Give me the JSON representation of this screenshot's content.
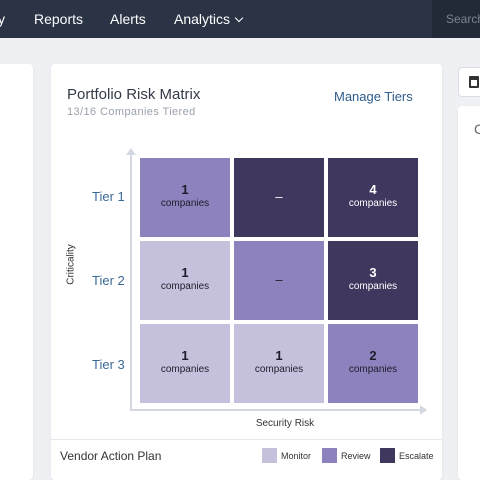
{
  "nav": {
    "partial_item": "y",
    "reports": "Reports",
    "alerts": "Alerts",
    "analytics": "Analytics",
    "search_placeholder": "Search"
  },
  "card": {
    "title": "Portfolio Risk Matrix",
    "subtitle": "13/16 Companies Tiered",
    "manage_link": "Manage Tiers"
  },
  "right_panel": {
    "letter": "C"
  },
  "chart_data": {
    "type": "heatmap",
    "ylabel": "Criticality",
    "xlabel": "Security Risk",
    "rows": [
      "Tier 1",
      "Tier 2",
      "Tier 3"
    ],
    "unit_label": "companies",
    "empty_label": "–",
    "cells": [
      [
        {
          "value": 1,
          "level": "review"
        },
        {
          "value": null,
          "level": "escalate"
        },
        {
          "value": 4,
          "level": "escalate"
        }
      ],
      [
        {
          "value": 1,
          "level": "monitor"
        },
        {
          "value": null,
          "level": "review"
        },
        {
          "value": 3,
          "level": "escalate"
        }
      ],
      [
        {
          "value": 1,
          "level": "monitor"
        },
        {
          "value": 1,
          "level": "monitor"
        },
        {
          "value": 2,
          "level": "review"
        }
      ]
    ],
    "levels": {
      "monitor": {
        "color": "#c5c0dc",
        "text_color": "#1e1d2b"
      },
      "review": {
        "color": "#8d82bd",
        "text_color": "#1e1d2b"
      },
      "escalate": {
        "color": "#40375f",
        "text_color": "#ffffff"
      }
    }
  },
  "footer": {
    "title": "Vendor Action Plan",
    "legend": [
      {
        "label": "Monitor",
        "color": "#c5c0dc"
      },
      {
        "label": "Review",
        "color": "#8d82bd"
      },
      {
        "label": "Escalate",
        "color": "#40375f"
      }
    ]
  }
}
